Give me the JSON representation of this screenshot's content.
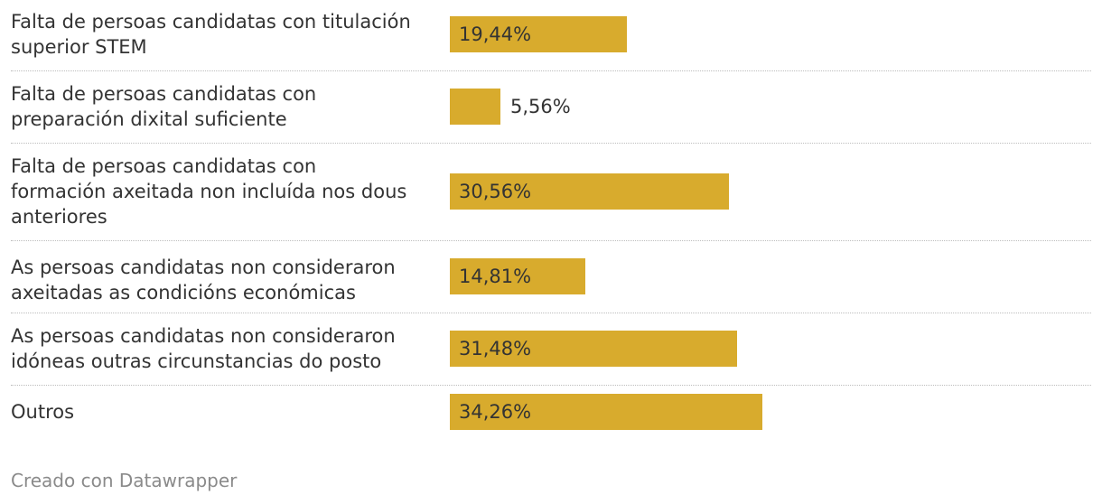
{
  "chart_data": {
    "type": "bar",
    "orientation": "horizontal",
    "categories": [
      "Falta de persoas candidatas con titulación superior STEM",
      "Falta de persoas candidatas con preparación dixital suficiente",
      "Falta de persoas candidatas con formación axeitada non incluída nos dous anteriores",
      "As persoas candidatas non consideraron axeitadas as condicións económicas",
      "As persoas candidatas non consideraron idóneas outras circunstancias do posto",
      "Outros"
    ],
    "values": [
      19.44,
      5.56,
      30.56,
      14.81,
      31.48,
      34.26
    ],
    "value_labels": [
      "19,44%",
      "5,56%",
      "30,56%",
      "14,81%",
      "31,48%",
      "34,26%"
    ],
    "unit": "%",
    "bar_color": "#d8ab2d",
    "grid": false,
    "xlim": [
      0,
      100
    ]
  },
  "credit": "Creado con Datawrapper"
}
